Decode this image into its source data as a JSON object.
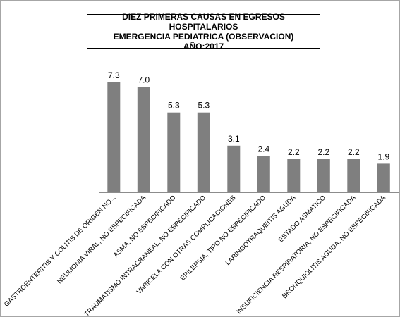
{
  "chart_data": {
    "type": "bar",
    "title_lines": [
      "DIEZ PRIMERAS CAUSAS EN EGRESOS HOSPITALARIOS",
      "EMERGENCIA PEDIATRICA (OBSERVACION)",
      "AÑO:2017"
    ],
    "categories": [
      "GASTROENTERITIS Y COLITIS DE ORIGEN NO...",
      "NEUMONIA VIRAL, NO ESPECIFICADA",
      "ASMA, NO ESPECIFICADO",
      "TRAUMATISMO INTRACRANEAL, NO ESPECIFICADO",
      "VARICELA CON OTRAS COMPLICACIONES",
      "EPILEPSIA, TIPO NO ESPECIFICADO",
      "LARINGOTRAQUEITIS AGUDA",
      "ESTADO ASMATICO",
      "INSUFICIENCIA RESPIRATORIA, NO ESPECIFICADA",
      "BRONQUIOLITIS AGUDA, NO ESPECIFICADA"
    ],
    "values": [
      7.3,
      7.0,
      5.3,
      5.3,
      3.1,
      2.4,
      2.2,
      2.2,
      2.2,
      1.9
    ],
    "value_labels": [
      "7.3",
      "7.0",
      "5.3",
      "5.3",
      "3.1",
      "2.4",
      "2.2",
      "2.2",
      "2.2",
      "1.9"
    ],
    "ylim": [
      0,
      7.3
    ],
    "grid": false,
    "legend": "none",
    "colors": {
      "bar": "#7f7f7f",
      "axis": "#8c8c8c",
      "text": "#000000"
    }
  }
}
